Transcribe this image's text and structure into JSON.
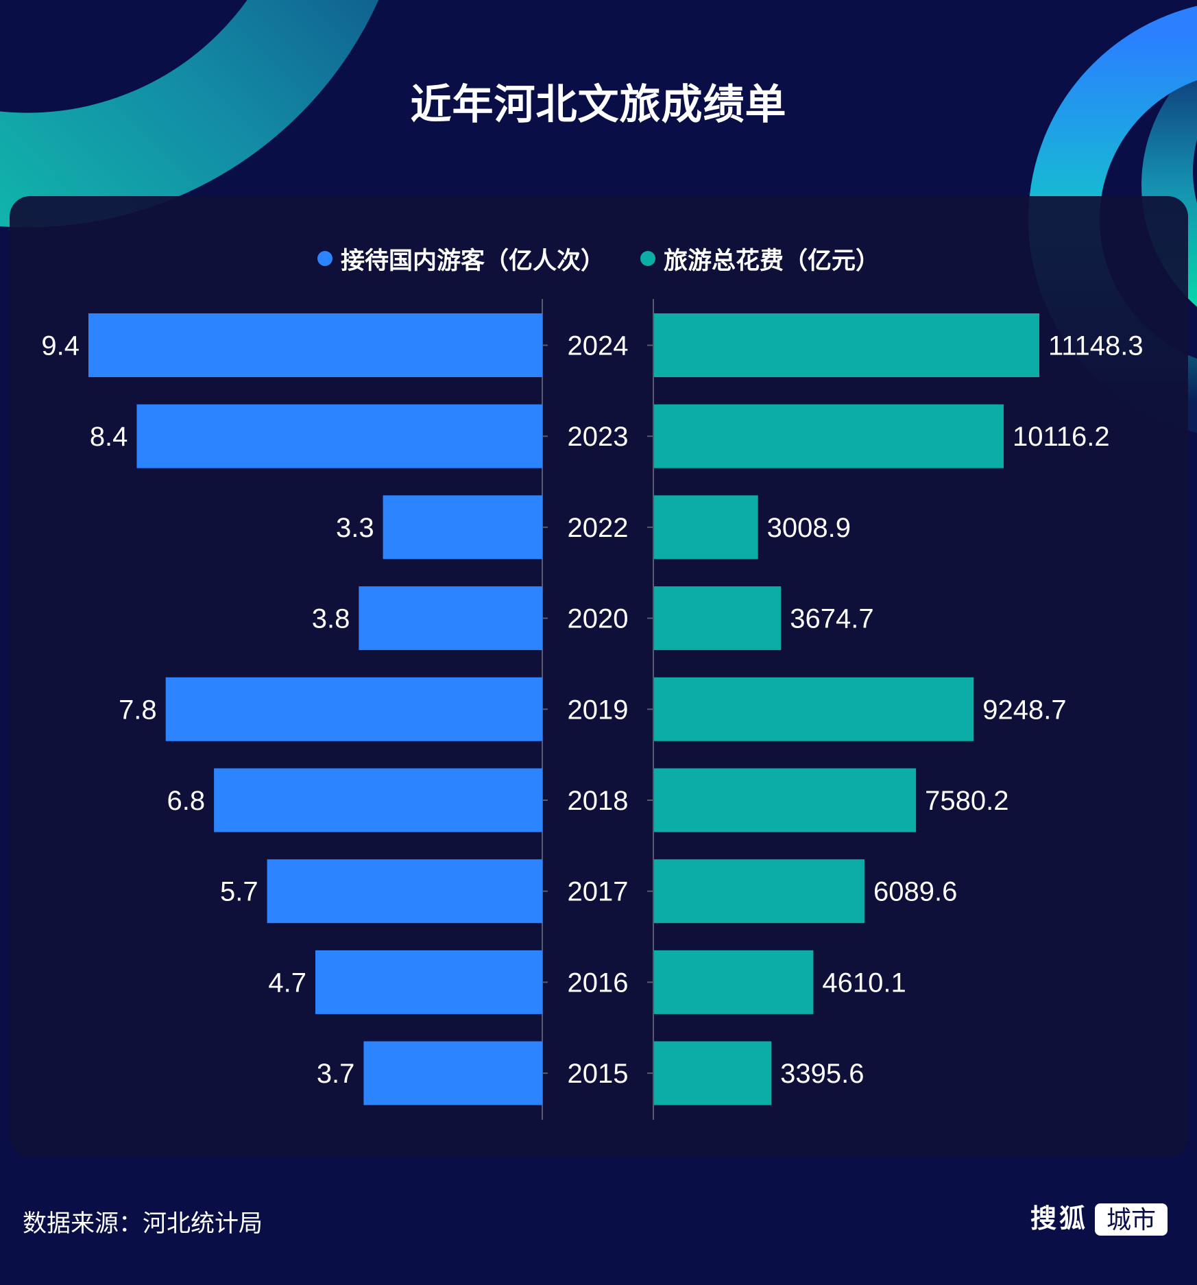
{
  "title": "近年河北文旅成绩单",
  "colors": {
    "background": "#0a0e47",
    "card": "#0f1038",
    "visitors": "#2c84ff",
    "spending": "#0badA6",
    "axis": "#5a5a6e",
    "text": "#ffffff"
  },
  "legend": [
    {
      "label": "接待国内游客（亿人次）",
      "color": "#2c84ff"
    },
    {
      "label": "旅游总花费（亿元）",
      "color": "#0badA6"
    }
  ],
  "footer": {
    "source": "数据来源：河北统计局",
    "logo_main": "搜狐",
    "logo_box": "城市"
  },
  "chart_data": {
    "type": "bar",
    "orientation": "horizontal-butterfly",
    "title": "近年河北文旅成绩单",
    "categories": [
      "2024",
      "2023",
      "2022",
      "2020",
      "2019",
      "2018",
      "2017",
      "2016",
      "2015"
    ],
    "series": [
      {
        "name": "接待国内游客（亿人次）",
        "side": "left",
        "values": [
          9.4,
          8.4,
          3.3,
          3.8,
          7.8,
          6.8,
          5.7,
          4.7,
          3.7
        ],
        "labels": [
          "9.4",
          "8.4",
          "3.3",
          "3.8",
          "7.8",
          "6.8",
          "5.7",
          "4.7",
          "3.7"
        ],
        "xlim": [
          0,
          9.4
        ]
      },
      {
        "name": "旅游总花费（亿元）",
        "side": "right",
        "values": [
          11148.3,
          10116.2,
          3008.9,
          3674.7,
          9248.7,
          7580.2,
          6089.6,
          4610.1,
          3395.6
        ],
        "labels": [
          "11148.3",
          "10116.2",
          "3008.9",
          "3674.7",
          "9248.7",
          "7580.2",
          "6089.6",
          "4610.1",
          "3395.6"
        ],
        "xlim": [
          0,
          11148.3
        ]
      }
    ],
    "legend_position": "top-center",
    "grid": false
  }
}
